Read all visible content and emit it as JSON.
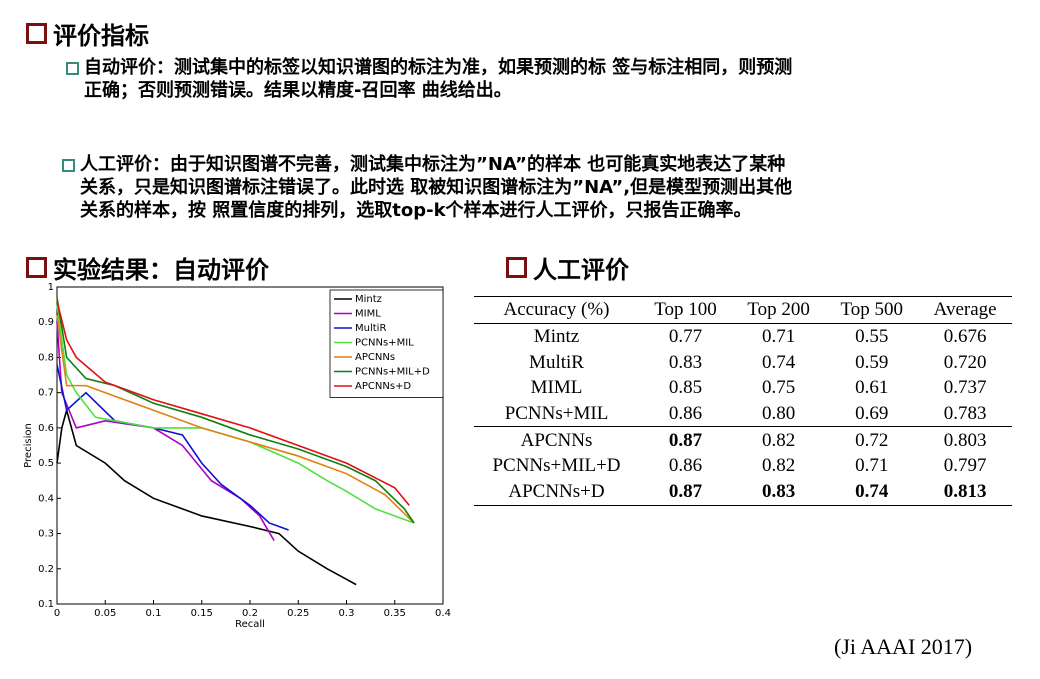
{
  "heading1": "评价指标",
  "bullets": [
    {
      "label": "自动评价",
      "lines": [
        "：测试集中的标签以知识谱图的标注为准，如果预测的标 签与标注相同，则预测",
        "正确；否则预测错误。结果以精度-召回率 曲线给出。"
      ]
    },
    {
      "label": "人工评价",
      "lines": [
        "：由于知识图谱不完善，测试集中标注为”NA”的样本 也可能真实地表达了某种",
        "关系，只是知识图谱标注错误了。此时选 取被知识图谱标注为”NA”,但是模型预测出其他",
        "关系的样本，按 照置信度的排列，选取top-k个样本进行人工评价，只报告正确率。"
      ]
    }
  ],
  "heading2": "实验结果：自动评价",
  "heading3": "人工评价",
  "chart_data": {
    "type": "line",
    "xlabel": "Recall",
    "ylabel": "Precision",
    "xlim": [
      0,
      0.4
    ],
    "ylim": [
      0.1,
      1
    ],
    "xticks": [
      0,
      0.05,
      0.1,
      0.15,
      0.2,
      0.25,
      0.3,
      0.35,
      0.4
    ],
    "yticks": [
      0.1,
      0.2,
      0.3,
      0.4,
      0.5,
      0.6,
      0.7,
      0.8,
      0.9,
      1
    ],
    "legend": "upper right",
    "series": [
      {
        "name": "Mintz",
        "color": "#000000",
        "x": [
          0,
          0.005,
          0.01,
          0.02,
          0.05,
          0.07,
          0.1,
          0.13,
          0.15,
          0.2,
          0.23,
          0.25,
          0.28,
          0.3,
          0.31
        ],
        "values": [
          0.5,
          0.6,
          0.65,
          0.55,
          0.5,
          0.45,
          0.4,
          0.37,
          0.35,
          0.32,
          0.3,
          0.25,
          0.2,
          0.17,
          0.155
        ]
      },
      {
        "name": "MIML",
        "color": "#b000c8",
        "x": [
          0,
          0.005,
          0.02,
          0.05,
          0.1,
          0.13,
          0.16,
          0.19,
          0.21,
          0.225
        ],
        "values": [
          0.9,
          0.7,
          0.6,
          0.62,
          0.6,
          0.55,
          0.45,
          0.4,
          0.35,
          0.28
        ]
      },
      {
        "name": "MultiR",
        "color": "#1010d0",
        "x": [
          0,
          0.01,
          0.03,
          0.06,
          0.1,
          0.13,
          0.15,
          0.17,
          0.2,
          0.22,
          0.24
        ],
        "values": [
          0.78,
          0.65,
          0.7,
          0.62,
          0.6,
          0.58,
          0.5,
          0.44,
          0.38,
          0.33,
          0.31
        ]
      },
      {
        "name": "PCNNs+MIL",
        "color": "#50e040",
        "x": [
          0,
          0.01,
          0.02,
          0.04,
          0.06,
          0.1,
          0.15,
          0.2,
          0.25,
          0.28,
          0.3,
          0.33,
          0.36,
          0.37
        ],
        "values": [
          0.95,
          0.75,
          0.7,
          0.63,
          0.62,
          0.6,
          0.6,
          0.56,
          0.5,
          0.45,
          0.42,
          0.37,
          0.34,
          0.33
        ]
      },
      {
        "name": "APCNNs",
        "color": "#e08010",
        "x": [
          0,
          0.01,
          0.03,
          0.07,
          0.1,
          0.15,
          0.2,
          0.25,
          0.3,
          0.34,
          0.37
        ],
        "values": [
          0.92,
          0.72,
          0.72,
          0.68,
          0.65,
          0.6,
          0.56,
          0.52,
          0.47,
          0.41,
          0.33
        ]
      },
      {
        "name": "PCNNs+MIL+D",
        "color": "#108010",
        "x": [
          0,
          0.01,
          0.03,
          0.06,
          0.1,
          0.15,
          0.2,
          0.25,
          0.3,
          0.33,
          0.36,
          0.37
        ],
        "values": [
          0.97,
          0.8,
          0.74,
          0.72,
          0.67,
          0.63,
          0.58,
          0.54,
          0.49,
          0.45,
          0.37,
          0.33
        ]
      },
      {
        "name": "APCNNs+D",
        "color": "#e01010",
        "x": [
          0,
          0.01,
          0.02,
          0.05,
          0.1,
          0.15,
          0.2,
          0.25,
          0.3,
          0.35,
          0.365
        ],
        "values": [
          0.96,
          0.85,
          0.8,
          0.73,
          0.68,
          0.64,
          0.6,
          0.55,
          0.5,
          0.43,
          0.38
        ]
      }
    ]
  },
  "table": {
    "header": [
      "Accuracy (%)",
      "Top 100",
      "Top 200",
      "Top 500",
      "Average"
    ],
    "rows": [
      [
        "Mintz",
        "0.77",
        "0.71",
        "0.55",
        "0.676"
      ],
      [
        "MultiR",
        "0.83",
        "0.74",
        "0.59",
        "0.720"
      ],
      [
        "MIML",
        "0.85",
        "0.75",
        "0.61",
        "0.737"
      ],
      [
        "PCNNs+MIL",
        "0.86",
        "0.80",
        "0.69",
        "0.783"
      ],
      [
        "APCNNs",
        "0.87",
        "0.82",
        "0.72",
        "0.803"
      ],
      [
        "PCNNs+MIL+D",
        "0.86",
        "0.82",
        "0.71",
        "0.797"
      ],
      [
        "APCNNs+D",
        "0.87",
        "0.83",
        "0.74",
        "0.813"
      ]
    ],
    "bold": [
      [
        4,
        1
      ],
      [
        6,
        1
      ],
      [
        6,
        2
      ],
      [
        6,
        3
      ],
      [
        6,
        4
      ]
    ],
    "separator_before_row": 4
  },
  "citation": "(Ji AAAI 2017)"
}
